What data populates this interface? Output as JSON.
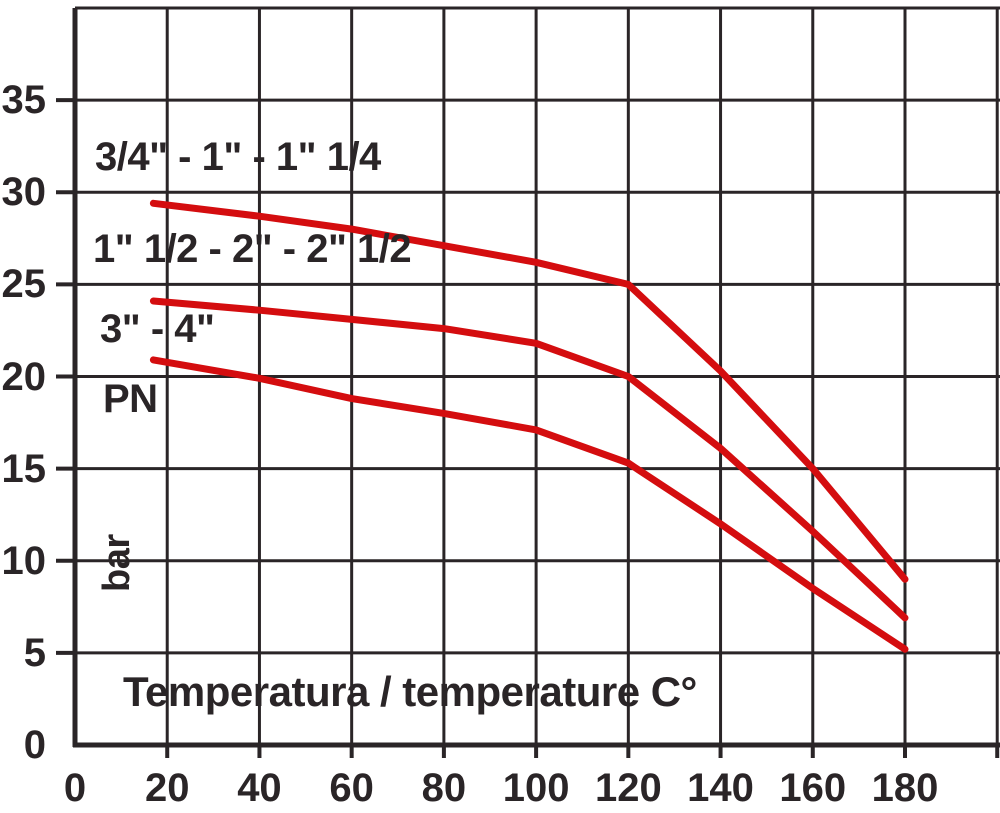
{
  "chart_data": {
    "type": "line",
    "title": "",
    "xlabel": "Temperatura / temperature C°",
    "ylabel": "PN",
    "ylabel_unit": "bar",
    "x_ticks": [
      0,
      20,
      40,
      60,
      80,
      100,
      120,
      140,
      160,
      180
    ],
    "y_ticks": [
      0,
      5,
      10,
      15,
      20,
      25,
      30,
      35
    ],
    "xlim": [
      0,
      200
    ],
    "ylim": [
      0,
      40
    ],
    "grid": true,
    "legend_position": "labels-on-chart",
    "series": [
      {
        "name": "3/4\" - 1\" - 1\" 1/4",
        "x": [
          17,
          40,
          60,
          80,
          100,
          120,
          140,
          160,
          180
        ],
        "values": [
          29.4,
          28.7,
          28.0,
          27.1,
          26.2,
          25.0,
          20.3,
          15.0,
          9.0
        ]
      },
      {
        "name": "1\" 1/2 - 2\" - 2\" 1/2",
        "x": [
          17,
          40,
          60,
          80,
          100,
          120,
          140,
          160,
          180
        ],
        "values": [
          24.1,
          23.6,
          23.1,
          22.6,
          21.8,
          20.0,
          16.1,
          11.6,
          6.9
        ]
      },
      {
        "name": "3\" - 4\"",
        "x": [
          17,
          40,
          60,
          80,
          100,
          120,
          140,
          160,
          180
        ],
        "values": [
          20.9,
          19.9,
          18.8,
          18.0,
          17.1,
          15.3,
          12.0,
          8.5,
          5.2
        ]
      }
    ],
    "colors": {
      "curve": "#d40d0f",
      "ink": "#2a2527",
      "background": "#ffffff"
    }
  }
}
